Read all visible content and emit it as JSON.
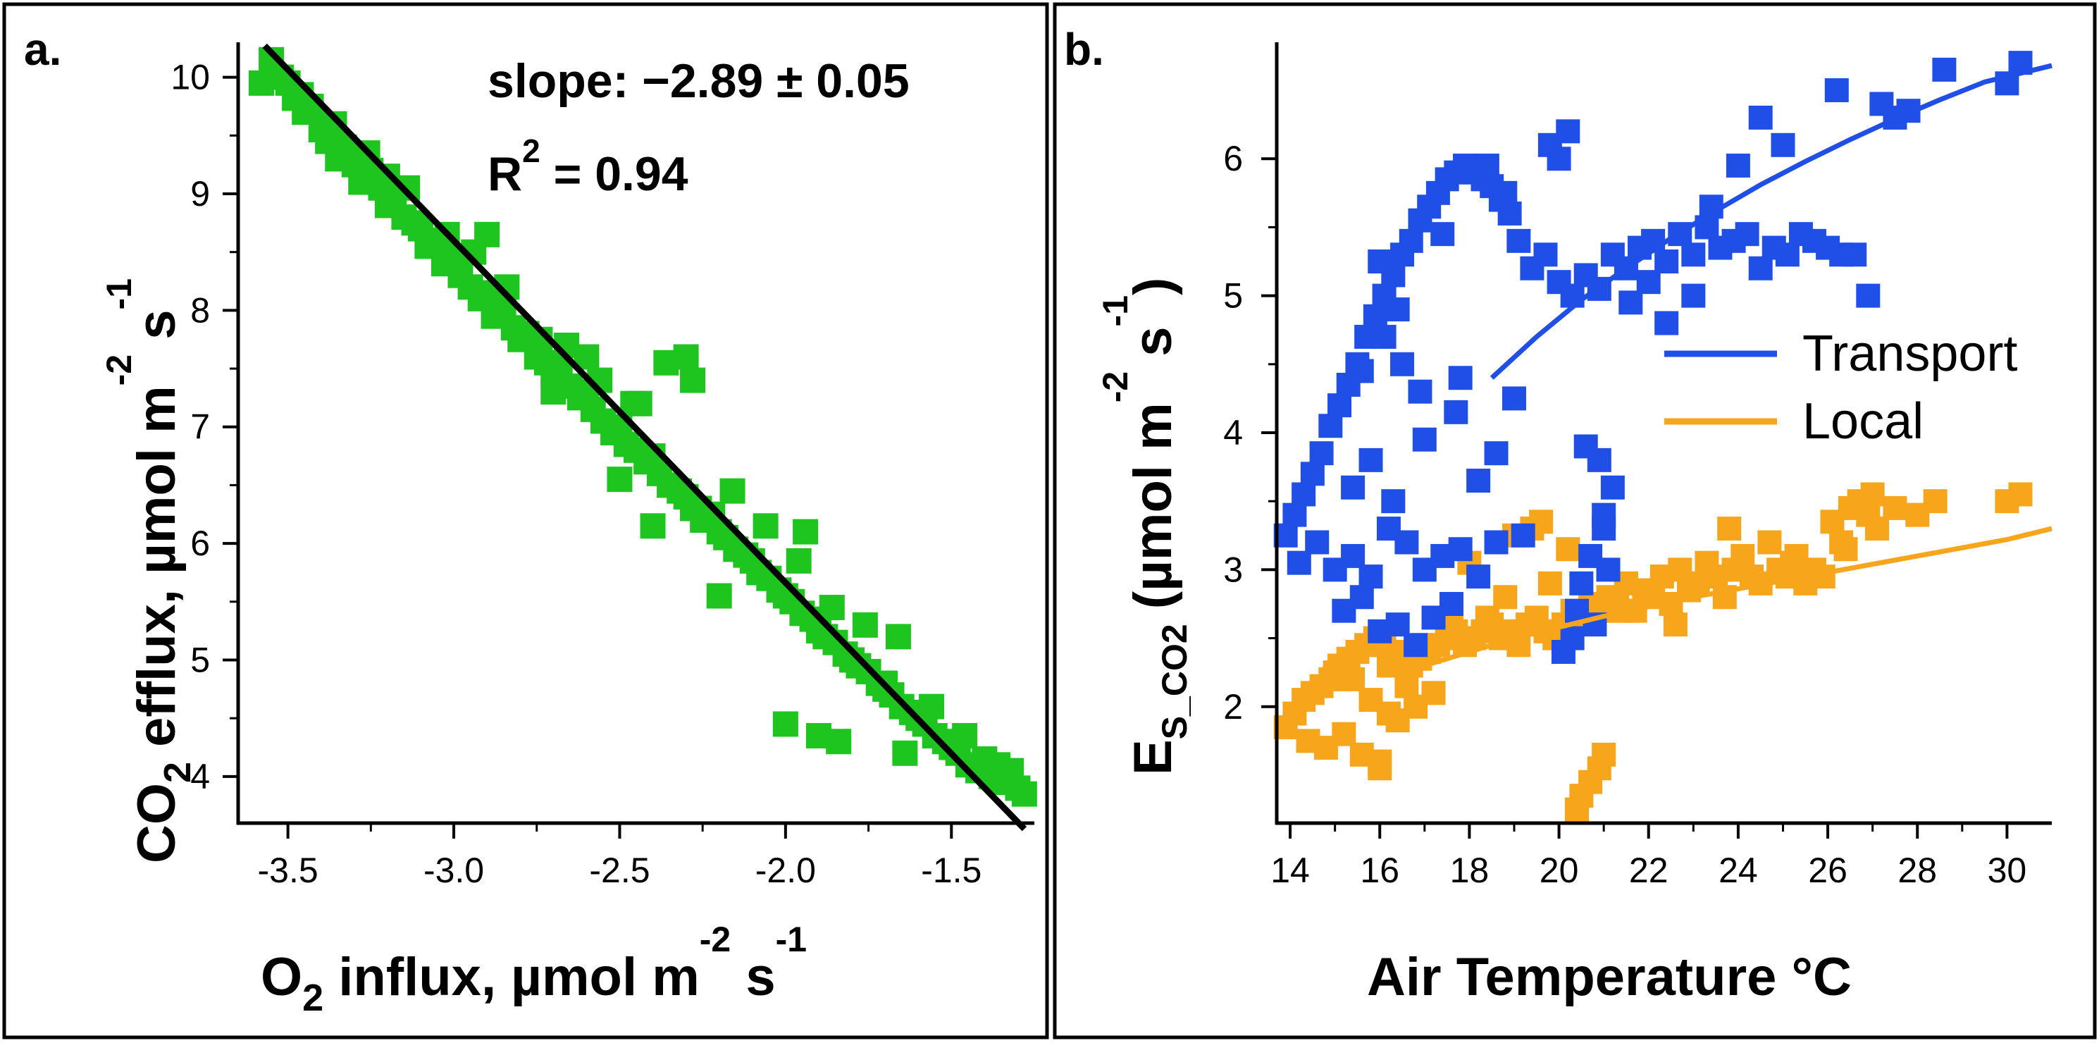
{
  "panels": {
    "a": {
      "label": "a.",
      "slope_text": "slope: −2.89 ± 0.05",
      "r2_text_pre": "R",
      "r2_sup": "2",
      "r2_text_post": " = 0.94"
    },
    "b": {
      "label": "b."
    }
  },
  "chart_data": [
    {
      "type": "scatter",
      "panel": "a",
      "xlabel": {
        "main": "O",
        "sub1": "2",
        "rest": " influx, µmol m",
        "sup1": "-2",
        "mid": " s",
        "sup2": "-1"
      },
      "ylabel": {
        "main": "CO",
        "sub1": "2",
        "rest": " efflux, µmol m",
        "sup1": "-2",
        "mid": " s",
        "sup2": "-1"
      },
      "xlim": [
        -3.65,
        -1.25
      ],
      "ylim": [
        3.6,
        10.3
      ],
      "xticks": [
        -3.5,
        -3.0,
        -2.5,
        -2.0,
        -1.5
      ],
      "xtick_labels": [
        "-3.5",
        "-3.0",
        "-2.5",
        "-2.0",
        "-1.5"
      ],
      "yticks": [
        4,
        5,
        6,
        7,
        8,
        9,
        10
      ],
      "ytick_labels": [
        "4",
        "5",
        "6",
        "7",
        "8",
        "9",
        "10"
      ],
      "marker_color": "#1fc51f",
      "fit_line_color": "#000000",
      "fit_line": {
        "x": [
          -3.57,
          -1.28
        ],
        "y": [
          10.27,
          3.55
        ]
      },
      "series": [
        {
          "x": [
            -3.55,
            -3.52,
            -3.5,
            -3.48,
            -3.45,
            -3.43,
            -3.4,
            -3.38,
            -3.35,
            -3.33,
            -3.3,
            -3.28,
            -3.25,
            -3.22,
            -3.2,
            -3.18,
            -3.15,
            -3.12,
            -3.1,
            -3.08,
            -3.05,
            -3.03,
            -3.0,
            -2.98,
            -2.95,
            -2.92,
            -2.9,
            -2.88,
            -2.85,
            -2.82,
            -2.8,
            -2.78,
            -2.75,
            -2.72,
            -2.7,
            -2.68,
            -2.65,
            -2.62,
            -2.6,
            -2.58,
            -2.55,
            -2.52,
            -2.5,
            -2.48,
            -2.45,
            -2.42,
            -2.4,
            -2.38,
            -2.35,
            -2.32,
            -2.3,
            -2.28,
            -2.25,
            -2.22,
            -2.2,
            -2.18,
            -2.15,
            -2.12,
            -2.1,
            -2.08,
            -2.05,
            -2.02,
            -2.0,
            -1.98,
            -1.95,
            -1.92,
            -1.9,
            -1.88,
            -1.85,
            -1.82,
            -1.8,
            -1.78,
            -1.75,
            -1.72,
            -1.7,
            -1.68,
            -1.65,
            -1.62,
            -1.6,
            -1.58,
            -1.55,
            -1.52,
            -1.5,
            -1.48,
            -1.45,
            -1.42,
            -1.4,
            -1.38,
            -1.35,
            -1.32,
            -1.3,
            -1.28,
            -3.58,
            -3.46,
            -3.36,
            -3.26,
            -3.14,
            -3.02,
            -2.94,
            -2.84,
            -2.74,
            -2.66,
            -2.56,
            -2.46,
            -2.36,
            -2.3,
            -2.26,
            -2.16,
            -2.06,
            -1.96,
            -1.86,
            -1.76,
            -1.66,
            -1.56,
            -1.46,
            -1.36,
            -2.9,
            -2.7,
            -2.5,
            -2.4,
            -2.2,
            -2.0,
            -1.9,
            -1.7,
            -3.2,
            -2.6,
            -2.44,
            -2.28,
            -1.94,
            -1.84,
            -1.64
          ],
          "y": [
            10.15,
            10.0,
            9.95,
            9.82,
            9.7,
            9.75,
            9.55,
            9.45,
            9.3,
            9.4,
            9.25,
            9.1,
            9.2,
            9.05,
            8.9,
            9.0,
            8.8,
            8.75,
            8.7,
            8.55,
            8.6,
            8.4,
            8.45,
            8.3,
            8.2,
            8.1,
            8.15,
            7.95,
            8.0,
            7.85,
            7.75,
            7.8,
            7.6,
            7.55,
            7.45,
            7.5,
            7.35,
            7.25,
            7.3,
            7.15,
            7.05,
            6.95,
            7.0,
            6.85,
            6.8,
            6.7,
            6.75,
            6.6,
            6.5,
            6.45,
            6.4,
            6.3,
            6.2,
            6.25,
            6.1,
            6.05,
            5.95,
            5.9,
            5.85,
            5.75,
            5.7,
            5.6,
            5.55,
            5.5,
            5.4,
            5.35,
            5.25,
            5.2,
            5.15,
            5.05,
            5.0,
            4.95,
            4.9,
            4.8,
            4.75,
            4.7,
            4.6,
            4.55,
            4.5,
            4.45,
            4.35,
            4.3,
            4.25,
            4.2,
            4.1,
            4.05,
            4.15,
            4.0,
            3.95,
            4.05,
            3.9,
            3.85,
            9.95,
            9.85,
            9.6,
            9.35,
            9.05,
            8.65,
            8.5,
            8.2,
            7.75,
            7.7,
            7.4,
            7.2,
            7.55,
            7.6,
            6.3,
            6.45,
            6.15,
            5.85,
            5.45,
            5.3,
            5.2,
            4.6,
            4.35,
            4.1,
            8.65,
            7.3,
            6.55,
            6.15,
            5.55,
            4.45,
            4.35,
            4.8,
            9.15,
            7.6,
            7.2,
            7.4,
            6.1,
            4.3,
            4.2
          ]
        }
      ]
    },
    {
      "type": "scatter",
      "panel": "b",
      "xlabel": "Air Temperature °C",
      "ylabel": {
        "main": "E",
        "sub1": "S_CO2",
        "rest": " (µmol m",
        "sup1": "-2",
        "mid": " s",
        "sup2": "-1",
        "close": ")"
      },
      "xlim": [
        13.7,
        31
      ],
      "ylim": [
        1.15,
        6.85
      ],
      "xticks": [
        14,
        16,
        18,
        20,
        22,
        24,
        26,
        28,
        30
      ],
      "xtick_labels": [
        "14",
        "16",
        "18",
        "20",
        "22",
        "24",
        "26",
        "28",
        "30"
      ],
      "yticks": [
        2,
        3,
        4,
        5,
        6
      ],
      "ytick_labels": [
        "2",
        "3",
        "4",
        "5",
        "6"
      ],
      "legend": {
        "placement": "right-middle",
        "entries": [
          "Transport",
          "Local"
        ]
      },
      "series": [
        {
          "name": "Transport",
          "color": "#1f4fe6",
          "fit_curve": {
            "x": [
              18.5,
              19.5,
              20.5,
              21.5,
              22.5,
              23.5,
              24.5,
              25.5,
              26.5,
              27.5,
              28.5,
              29.5,
              31.0
            ],
            "y": [
              4.4,
              4.7,
              4.97,
              5.2,
              5.42,
              5.62,
              5.81,
              5.98,
              6.14,
              6.29,
              6.43,
              6.56,
              6.68
            ]
          },
          "x": [
            13.9,
            14.1,
            14.3,
            14.5,
            14.7,
            14.9,
            15.1,
            15.3,
            15.5,
            15.7,
            15.9,
            16.1,
            16.3,
            16.5,
            16.7,
            16.9,
            17.1,
            17.3,
            17.5,
            17.7,
            17.9,
            18.1,
            18.3,
            18.5,
            18.7,
            18.9,
            14.2,
            14.6,
            15.0,
            15.4,
            15.8,
            16.2,
            16.6,
            17.0,
            17.4,
            17.8,
            18.2,
            18.6,
            15.2,
            15.6,
            16.0,
            16.4,
            16.8,
            17.2,
            17.6,
            16.1,
            16.5,
            16.9,
            15.4,
            15.8,
            19.1,
            19.4,
            19.7,
            20.0,
            20.3,
            20.6,
            20.9,
            21.2,
            21.5,
            21.8,
            22.1,
            22.4,
            22.7,
            23.0,
            23.3,
            23.6,
            23.9,
            24.2,
            24.5,
            24.8,
            25.1,
            25.4,
            25.7,
            26.0,
            26.3,
            26.6,
            26.9,
            27.2,
            27.5,
            27.8,
            28.6,
            30.0,
            30.3,
            20.1,
            20.4,
            20.7,
            21.0,
            21.2,
            20.8,
            20.5,
            21.0,
            20.3,
            20.9,
            21.1,
            20.6,
            17.4,
            17.8,
            18.2,
            18.6,
            19.0,
            18.8,
            18.4,
            16.4,
            16.0,
            15.6,
            20.0,
            19.8,
            20.2,
            22.0,
            23.0,
            24.0,
            24.5,
            25.0,
            26.2,
            21.6,
            22.4,
            23.4,
            16.3,
            17.0,
            17.7,
            19.2
          ],
          "y": [
            3.25,
            3.4,
            3.55,
            3.7,
            3.85,
            4.05,
            4.2,
            4.35,
            4.5,
            4.7,
            4.85,
            5.0,
            5.15,
            5.3,
            5.4,
            5.55,
            5.65,
            5.75,
            5.85,
            5.9,
            5.95,
            5.9,
            5.85,
            5.8,
            5.7,
            5.6,
            3.05,
            3.2,
            3.0,
            3.1,
            2.95,
            3.3,
            3.2,
            3.0,
            3.1,
            3.15,
            2.95,
            3.2,
            2.7,
            2.8,
            2.55,
            2.6,
            2.45,
            2.65,
            2.75,
            4.7,
            4.5,
            4.3,
            3.6,
            3.8,
            5.4,
            5.2,
            5.3,
            5.1,
            5.0,
            5.15,
            5.05,
            5.3,
            5.2,
            5.35,
            5.4,
            5.25,
            5.45,
            5.3,
            5.5,
            5.35,
            5.4,
            5.45,
            5.2,
            5.35,
            5.3,
            5.45,
            5.4,
            5.35,
            5.3,
            5.3,
            5.0,
            6.4,
            6.3,
            6.35,
            6.65,
            6.55,
            6.7,
            2.4,
            2.7,
            3.1,
            3.4,
            3.6,
            2.6,
            2.9,
            3.3,
            2.5,
            3.8,
            3.0,
            3.9,
            5.45,
            4.4,
            3.65,
            3.85,
            4.25,
            5.75,
            5.95,
            4.9,
            5.25,
            4.45,
            6.0,
            6.1,
            6.2,
            5.1,
            5.0,
            5.95,
            6.3,
            6.1,
            6.5,
            4.95,
            4.8,
            5.65,
            3.5,
            3.95,
            4.15,
            3.25
          ]
        },
        {
          "name": "Local",
          "color": "#f7a51a",
          "fit_curve": {
            "x": [
              17.0,
              18.0,
              19.0,
              20.0,
              21.0,
              22.0,
              23.0,
              24.0,
              25.0,
              26.0,
              27.0,
              28.0,
              29.0,
              30.0,
              31.0
            ],
            "y": [
              2.3,
              2.4,
              2.5,
              2.58,
              2.66,
              2.73,
              2.8,
              2.86,
              2.92,
              2.98,
              3.04,
              3.1,
              3.16,
              3.22,
              3.3
            ]
          },
          "x": [
            13.9,
            14.1,
            14.3,
            14.5,
            14.7,
            14.9,
            15.1,
            15.3,
            15.5,
            15.7,
            15.9,
            16.1,
            16.3,
            16.5,
            16.7,
            16.9,
            17.1,
            17.3,
            17.5,
            17.7,
            17.9,
            18.1,
            18.3,
            18.5,
            18.7,
            18.9,
            19.1,
            19.3,
            19.5,
            19.7,
            19.9,
            20.1,
            20.3,
            20.5,
            20.7,
            20.9,
            21.1,
            21.3,
            21.5,
            21.7,
            21.9,
            22.1,
            22.3,
            22.5,
            22.7,
            22.9,
            23.1,
            23.3,
            23.5,
            23.7,
            23.9,
            24.1,
            24.3,
            24.5,
            24.7,
            24.9,
            25.1,
            25.3,
            25.5,
            25.7,
            25.9,
            26.1,
            26.3,
            26.5,
            26.7,
            26.9,
            27.1,
            27.5,
            28.4,
            30.0,
            30.3,
            14.4,
            14.8,
            15.2,
            15.6,
            16.0,
            16.4,
            16.8,
            17.2,
            15.0,
            15.4,
            15.8,
            16.2,
            16.6,
            16.0,
            16.2,
            17.6,
            18.4,
            19.0,
            19.6,
            20.2,
            20.4,
            20.5,
            20.7,
            20.9,
            21.0,
            17.0,
            18.0,
            19.4,
            22.6,
            23.8,
            25.2,
            26.4,
            27.0,
            28.0,
            18.8,
            19.8,
            21.4
          ],
          "y": [
            1.85,
            1.95,
            2.05,
            2.1,
            2.15,
            2.2,
            2.3,
            2.35,
            2.4,
            2.45,
            2.5,
            2.45,
            2.4,
            2.35,
            2.3,
            2.35,
            2.4,
            2.45,
            2.5,
            2.55,
            2.45,
            2.5,
            2.55,
            2.6,
            2.5,
            2.55,
            2.45,
            2.6,
            2.65,
            2.55,
            2.5,
            2.6,
            2.7,
            2.65,
            2.75,
            2.7,
            2.8,
            2.75,
            2.9,
            2.7,
            2.85,
            2.8,
            2.95,
            2.75,
            3.0,
            2.85,
            2.9,
            3.05,
            2.95,
            2.8,
            3.0,
            3.1,
            2.95,
            2.9,
            3.2,
            3.0,
            2.95,
            3.1,
            2.9,
            3.0,
            2.95,
            3.35,
            3.2,
            3.45,
            3.5,
            3.4,
            3.3,
            3.45,
            3.5,
            3.5,
            3.55,
            1.75,
            1.7,
            1.8,
            1.65,
            1.55,
            1.9,
            2.0,
            2.1,
            2.25,
            2.2,
            2.05,
            1.95,
            2.15,
            1.6,
            2.3,
            2.6,
            2.65,
            3.25,
            3.35,
            3.15,
            1.25,
            1.35,
            1.45,
            1.55,
            1.65,
            2.45,
            3.05,
            3.3,
            2.6,
            3.3,
            3.05,
            3.15,
            3.55,
            3.4,
            2.8,
            2.9,
            2.7
          ]
        }
      ]
    }
  ]
}
